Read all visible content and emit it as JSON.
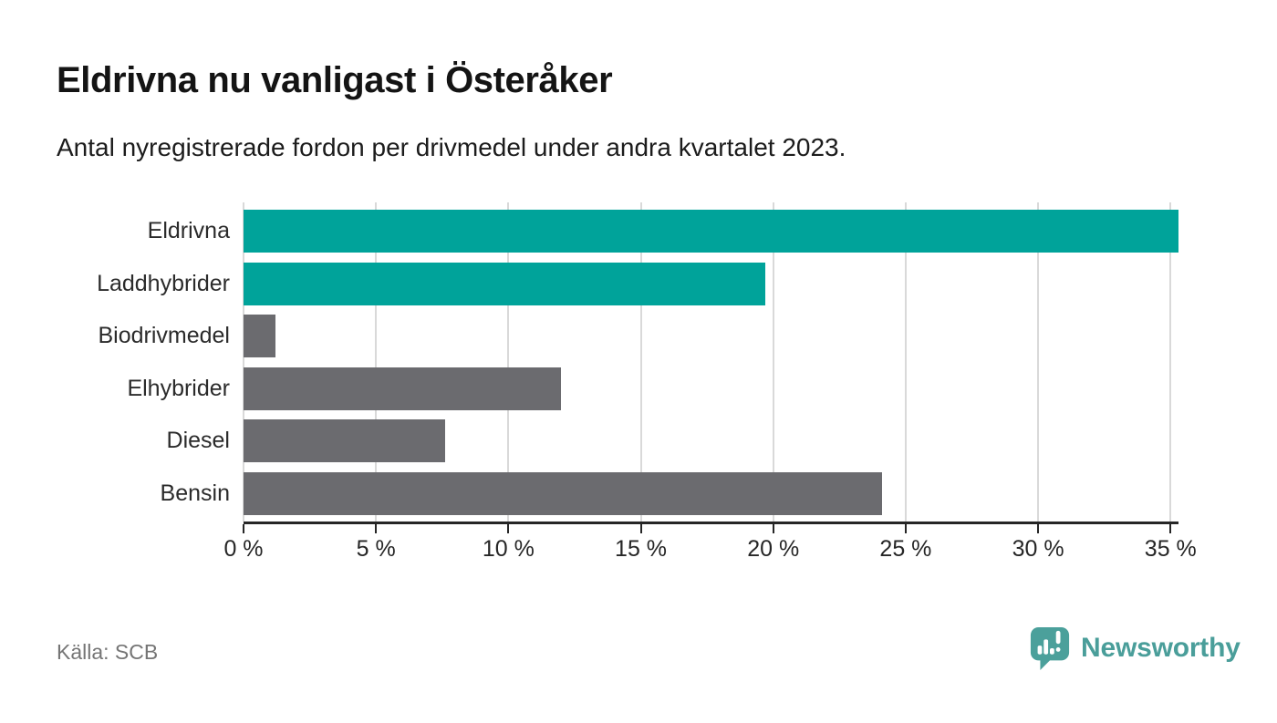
{
  "header": {
    "title": "Eldrivna nu vanligast i Österåker",
    "subtitle": "Antal nyregistrerade fordon per drivmedel under andra kvartalet 2023."
  },
  "chart_data": {
    "type": "bar",
    "orientation": "horizontal",
    "title": "Eldrivna nu vanligast i Österåker",
    "subtitle": "Antal nyregistrerade fordon per drivmedel under andra kvartalet 2023.",
    "categories": [
      "Eldrivna",
      "Laddhybrider",
      "Biodrivmedel",
      "Elhybrider",
      "Diesel",
      "Bensin"
    ],
    "values": [
      35.3,
      19.7,
      1.2,
      12.0,
      7.6,
      24.1
    ],
    "unit": "%",
    "bar_colors": [
      "#00a39a",
      "#00a39a",
      "#6b6b6f",
      "#6b6b6f",
      "#6b6b6f",
      "#6b6b6f"
    ],
    "highlight_color": "#00a39a",
    "default_color": "#6b6b6f",
    "xlabel": "",
    "ylabel": "",
    "xlim": [
      0,
      35.3
    ],
    "xticks": [
      0,
      5,
      10,
      15,
      20,
      25,
      30,
      35
    ],
    "xtick_labels": [
      "0 %",
      "5 %",
      "10 %",
      "15 %",
      "20 %",
      "25 %",
      "30 %",
      "35 %"
    ],
    "grid": "vertical",
    "legend": "none",
    "source": "Källa: SCB"
  },
  "footer": {
    "source": "Källa: SCB",
    "brand": "Newsworthy",
    "brand_color": "#4a9e9a"
  }
}
